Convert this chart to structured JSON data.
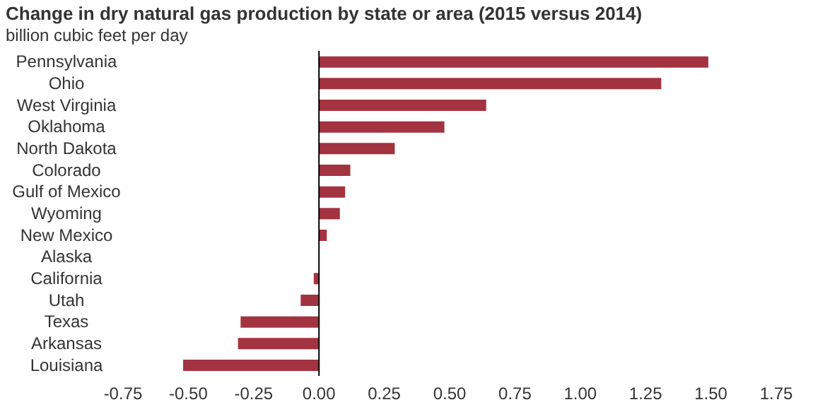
{
  "chart_data": {
    "type": "bar",
    "orientation": "horizontal",
    "title": "Change in dry natural gas production by state or area (2015 versus 2014)",
    "subtitle": "billion cubic feet per day",
    "categories": [
      "Pennsylvania",
      "Ohio",
      "West Virginia",
      "Oklahoma",
      "North Dakota",
      "Colorado",
      "Gulf of Mexico",
      "Wyoming",
      "New Mexico",
      "Alaska",
      "California",
      "Utah",
      "Texas",
      "Arkansas",
      "Louisiana"
    ],
    "values": [
      1.49,
      1.31,
      0.64,
      0.48,
      0.29,
      0.12,
      0.1,
      0.08,
      0.03,
      0.0,
      -0.02,
      -0.07,
      -0.3,
      -0.31,
      -0.52
    ],
    "color": "#a33340",
    "xlim": [
      -0.75,
      1.75
    ],
    "xticks": [
      {
        "value": -0.75,
        "label": "-0.75"
      },
      {
        "value": -0.5,
        "label": "-0.50"
      },
      {
        "value": -0.25,
        "label": "-0.25"
      },
      {
        "value": 0,
        "label": "0.00"
      },
      {
        "value": 0.25,
        "label": "0.25"
      },
      {
        "value": 0.5,
        "label": "0.50"
      },
      {
        "value": 0.75,
        "label": "0.75"
      },
      {
        "value": 1,
        "label": "1.00"
      },
      {
        "value": 1.25,
        "label": "1.25"
      },
      {
        "value": 1.5,
        "label": "1.50"
      },
      {
        "value": 1.75,
        "label": "1.75"
      }
    ],
    "legend": false
  }
}
